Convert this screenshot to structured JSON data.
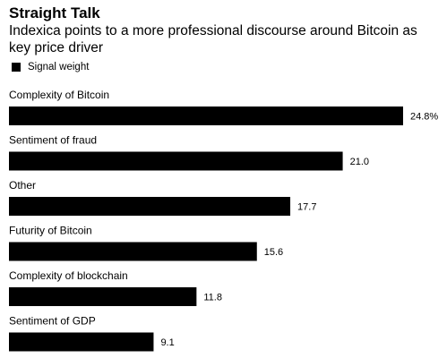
{
  "title": "Straight Talk",
  "subtitle": "Indexica points to a more professional discourse around Bitcoin as key price driver",
  "legend": {
    "label": "Signal weight",
    "color": "#000000"
  },
  "chart_data": {
    "type": "bar",
    "orientation": "horizontal",
    "categories": [
      "Complexity of Bitcoin",
      "Sentiment of fraud",
      "Other",
      "Futurity of Bitcoin",
      "Complexity of blockchain",
      "Sentiment of GDP"
    ],
    "series": [
      {
        "name": "Signal weight",
        "values": [
          24.8,
          21.0,
          17.7,
          15.6,
          11.8,
          9.1
        ]
      }
    ],
    "value_labels": [
      "24.8%",
      "21.0",
      "17.7",
      "15.6",
      "11.8",
      "9.1"
    ],
    "bar_color": "#000000",
    "xlim": [
      0,
      24.8
    ],
    "grid": false,
    "legend_position": "top-left"
  }
}
